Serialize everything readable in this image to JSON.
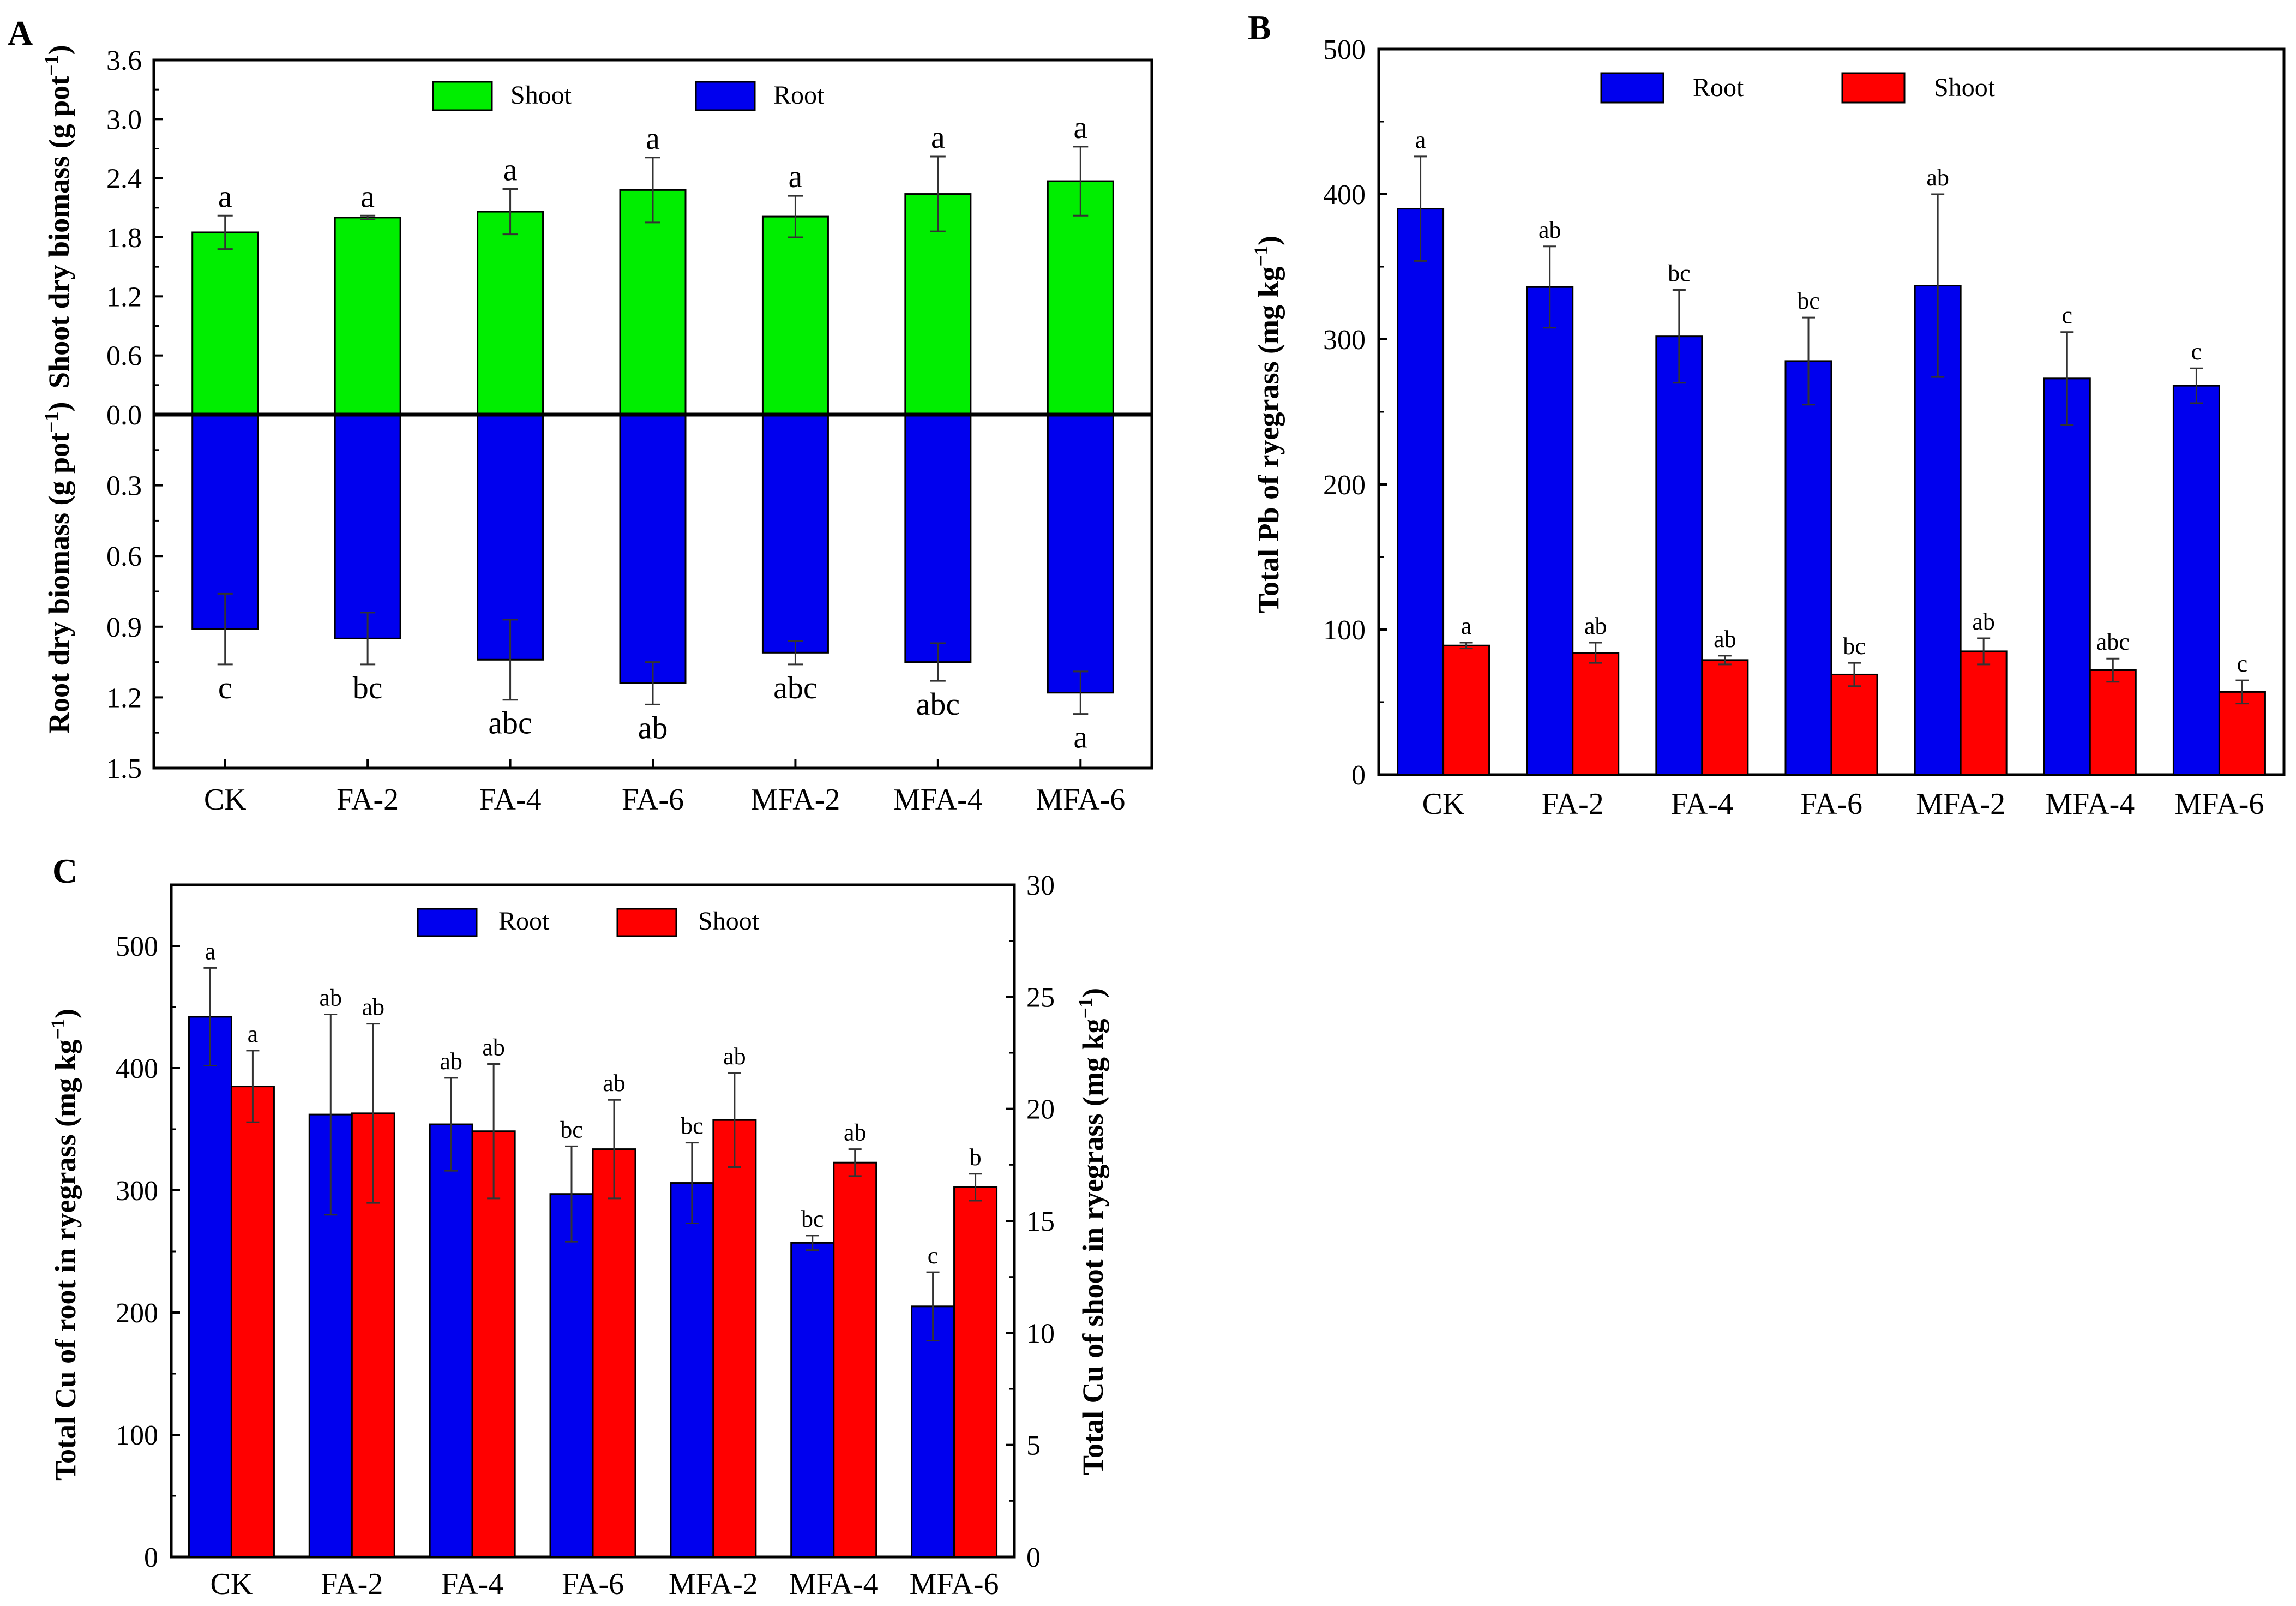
{
  "figure": {
    "categories": [
      "CK",
      "FA-2",
      "FA-4",
      "FA-6",
      "MFA-2",
      "MFA-4",
      "MFA-6"
    ]
  },
  "chart_data": [
    {
      "panel": "A",
      "type": "bar",
      "title": "",
      "categories": [
        "CK",
        "FA-2",
        "FA-4",
        "FA-6",
        "MFA-2",
        "MFA-4",
        "MFA-6"
      ],
      "ylabel_top": "Shoot dry biomass (g pot",
      "ylabel_bottom": "Root dry biomass (g pot",
      "ylabel_unit_sup": "−1",
      "ylabel_close": ")",
      "ylim_top": [
        0,
        3.6
      ],
      "ylim_bottom": [
        0,
        1.5
      ],
      "yticks_top": [
        "0.0",
        "0.6",
        "1.2",
        "1.8",
        "2.4",
        "3.0",
        "3.6"
      ],
      "yticks_bottom": [
        "0.3",
        "0.6",
        "0.9",
        "1.2",
        "1.5"
      ],
      "legend": [
        "Shoot",
        "Root"
      ],
      "series": [
        {
          "name": "Shoot",
          "color": "#00ee00",
          "values": [
            1.85,
            2.0,
            2.06,
            2.28,
            2.01,
            2.24,
            2.37
          ],
          "errors": [
            0.17,
            0.02,
            0.23,
            0.33,
            0.21,
            0.38,
            0.35
          ],
          "letters": [
            "a",
            "a",
            "a",
            "a",
            "a",
            "a",
            "a"
          ]
        },
        {
          "name": "Root",
          "color": "#0000ee",
          "values": [
            0.91,
            0.95,
            1.04,
            1.14,
            1.01,
            1.05,
            1.18
          ],
          "errors": [
            0.15,
            0.11,
            0.17,
            0.09,
            0.05,
            0.08,
            0.09
          ],
          "letters": [
            "c",
            "bc",
            "abc",
            "ab",
            "abc",
            "abc",
            "a"
          ]
        }
      ]
    },
    {
      "panel": "B",
      "type": "bar",
      "title": "",
      "categories": [
        "CK",
        "FA-2",
        "FA-4",
        "FA-6",
        "MFA-2",
        "MFA-4",
        "MFA-6"
      ],
      "ylabel": "Total Pb of ryegrass (mg kg",
      "ylabel_unit_sup": "−1",
      "ylabel_close": ")",
      "ylim": [
        0,
        500
      ],
      "yticks": [
        "0",
        "100",
        "200",
        "300",
        "400",
        "500"
      ],
      "legend": [
        "Root",
        "Shoot"
      ],
      "series": [
        {
          "name": "Root",
          "color": "#0000ee",
          "values": [
            390,
            336,
            302,
            285,
            337,
            273,
            268
          ],
          "errors": [
            36,
            28,
            32,
            30,
            63,
            32,
            12
          ],
          "letters": [
            "a",
            "ab",
            "bc",
            "bc",
            "ab",
            "c",
            "c"
          ]
        },
        {
          "name": "Shoot",
          "color": "#ff0000",
          "values": [
            89,
            84,
            79,
            69,
            85,
            72,
            57
          ],
          "errors": [
            2,
            7,
            3,
            8,
            9,
            8,
            8
          ],
          "letters": [
            "a",
            "ab",
            "ab",
            "bc",
            "ab",
            "abc",
            "c"
          ]
        }
      ]
    },
    {
      "panel": "C",
      "type": "bar",
      "title": "",
      "categories": [
        "CK",
        "FA-2",
        "FA-4",
        "FA-6",
        "MFA-2",
        "MFA-4",
        "MFA-6"
      ],
      "ylabel": "Total Cu of root in ryegrass (mg kg",
      "ylabel_right": "Total Cu of shoot in ryegrass (mg kg",
      "ylabel_unit_sup": "−1",
      "ylabel_close": ")",
      "ylim": [
        0,
        550
      ],
      "ylim_right": [
        0,
        30
      ],
      "yticks": [
        "0",
        "100",
        "200",
        "300",
        "400",
        "500"
      ],
      "yticks_right": [
        "0",
        "5",
        "10",
        "15",
        "20",
        "25",
        "30"
      ],
      "legend": [
        "Root",
        "Shoot"
      ],
      "series": [
        {
          "name": "Root",
          "axis": "left",
          "color": "#0000ee",
          "values": [
            442,
            362,
            354,
            297,
            306,
            257,
            205
          ],
          "errors": [
            40,
            82,
            38,
            39,
            33,
            6,
            28
          ],
          "letters": [
            "a",
            "ab",
            "ab",
            "bc",
            "bc",
            "bc",
            "c"
          ]
        },
        {
          "name": "Shoot",
          "axis": "right",
          "color": "#ff0000",
          "values": [
            21.0,
            19.8,
            19.0,
            18.2,
            19.5,
            17.6,
            16.5
          ],
          "errors": [
            1.6,
            4.0,
            3.0,
            2.2,
            2.1,
            0.6,
            0.6
          ],
          "letters": [
            "a",
            "ab",
            "ab",
            "ab",
            "ab",
            "ab",
            "b"
          ]
        }
      ]
    }
  ]
}
